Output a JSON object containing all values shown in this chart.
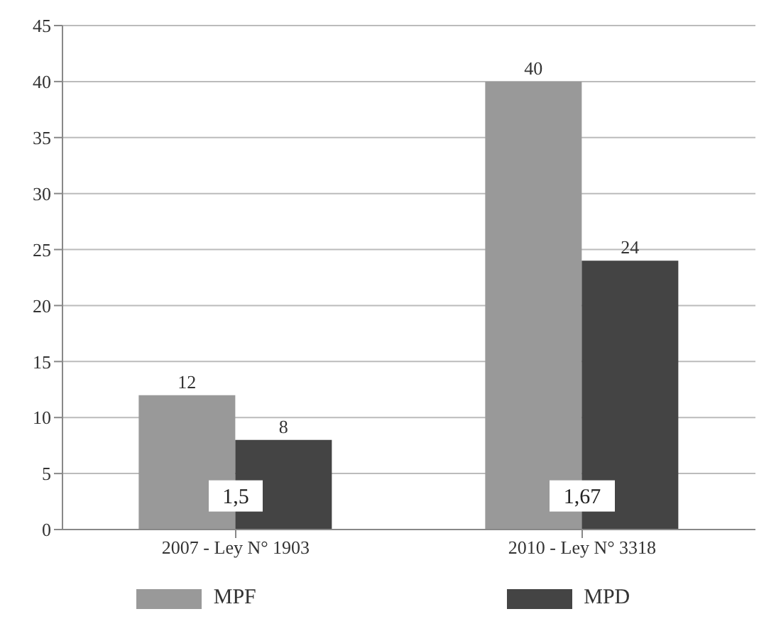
{
  "chart_data": {
    "type": "bar",
    "categories": [
      "2007 - Ley N° 1903",
      "2010 - Ley N° 3318"
    ],
    "series": [
      {
        "name": "MPF",
        "color": "#999999",
        "values": [
          12,
          40
        ]
      },
      {
        "name": "MPD",
        "color": "#444444",
        "values": [
          8,
          24
        ]
      }
    ],
    "ylim": [
      0,
      45
    ],
    "yticks": [
      0,
      5,
      10,
      15,
      20,
      25,
      30,
      35,
      40,
      45
    ],
    "grid": "y",
    "legend": "bottom",
    "data_labels": true,
    "annotations": [
      {
        "text": "1,5",
        "x": "2007 - Ley N° 1903",
        "y": 3
      },
      {
        "text": "1,67",
        "x": "2010 - Ley N° 3318",
        "y": 3
      }
    ]
  }
}
